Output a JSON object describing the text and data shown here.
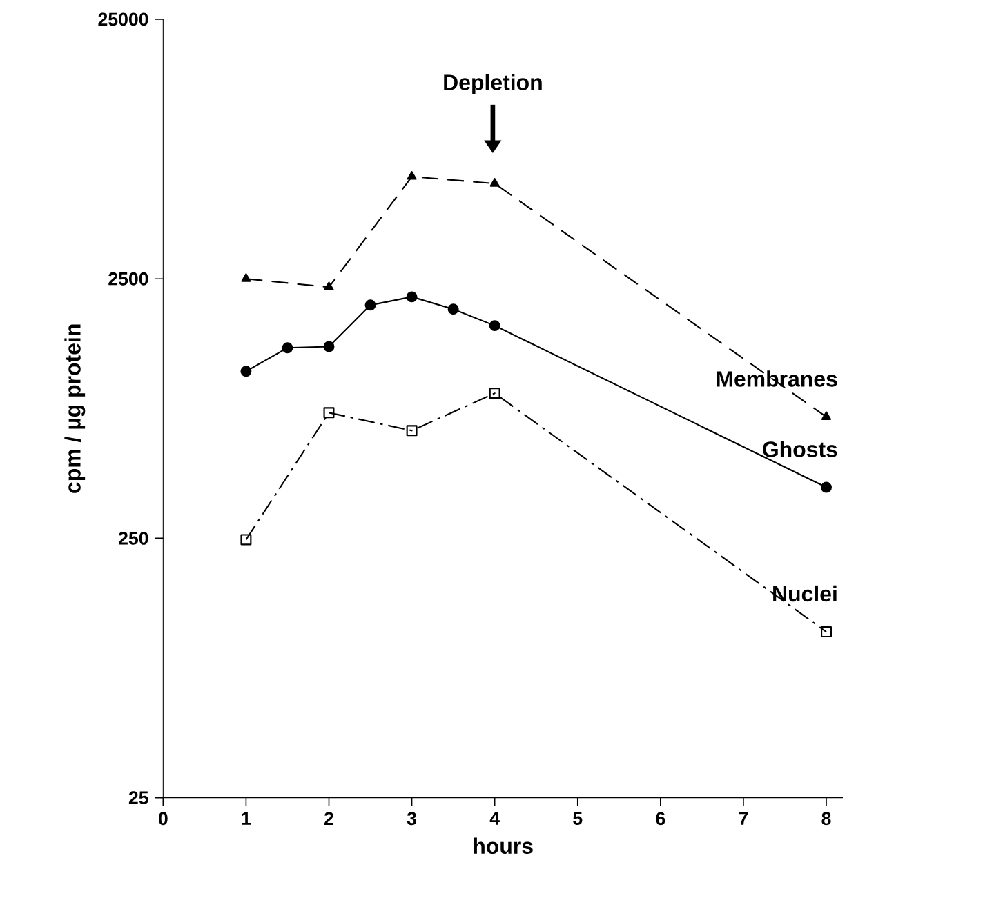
{
  "chart_data": {
    "type": "line",
    "xlabel": "hours",
    "ylabel": "cpm / µg protein",
    "xlim": [
      0,
      8.2
    ],
    "xticks": [
      0,
      1,
      2,
      3,
      4,
      5,
      6,
      7,
      8
    ],
    "ylim": [
      25,
      25000
    ],
    "yticks": [
      25,
      250,
      2500,
      25000
    ],
    "log": "y",
    "grid": false,
    "series": [
      {
        "name": "Membranes",
        "color": "#000000",
        "marker": "triangle",
        "line_style": "dashed",
        "x": [
          1,
          2,
          3,
          4,
          8
        ],
        "values": [
          2500,
          2320,
          6190,
          5820,
          734
        ]
      },
      {
        "name": "Ghosts",
        "color": "#000000",
        "marker": "circle",
        "line_style": "solid",
        "x": [
          1,
          1.5,
          2,
          2.5,
          3,
          3.5,
          4,
          8
        ],
        "values": [
          1100,
          1355,
          1370,
          1980,
          2130,
          1910,
          1650,
          393
        ]
      },
      {
        "name": "Nuclei",
        "color": "#000000",
        "marker": "square",
        "line_style": "dashdotted",
        "x": [
          1,
          2,
          3,
          4,
          8
        ],
        "values": [
          247,
          762,
          650,
          905,
          109
        ]
      }
    ],
    "annotations": [
      "Depletion"
    ]
  }
}
